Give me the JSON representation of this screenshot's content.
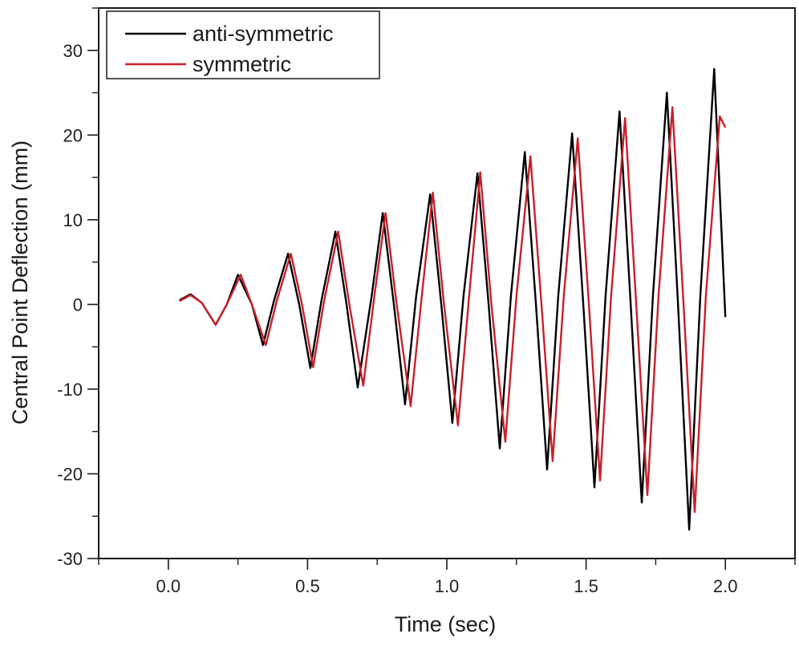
{
  "chart_data": {
    "type": "line",
    "title": "",
    "xlabel": "Time (sec)",
    "ylabel": "Central Point Deflection (mm)",
    "xlim": [
      -0.25,
      2.25
    ],
    "ylim": [
      -30,
      35
    ],
    "x_ticks": [
      0.0,
      0.5,
      1.0,
      1.5,
      2.0
    ],
    "x_tick_labels": [
      "0.0",
      "0.5",
      "1.0",
      "1.5",
      "2.0"
    ],
    "y_ticks": [
      -30,
      -20,
      -10,
      0,
      10,
      20,
      30
    ],
    "y_tick_labels": [
      "-30",
      "-20",
      "-10",
      "0",
      "10",
      "20",
      "30"
    ],
    "grid": false,
    "legend_position": "top-left",
    "series": [
      {
        "name": "anti-symmetric",
        "color": "#000000",
        "points": [
          [
            0.04,
            0.5
          ],
          [
            0.08,
            1.2
          ],
          [
            0.12,
            0.2
          ],
          [
            0.17,
            -2.4
          ],
          [
            0.21,
            0.0
          ],
          [
            0.25,
            3.5
          ],
          [
            0.3,
            0.0
          ],
          [
            0.34,
            -4.8
          ],
          [
            0.38,
            0.5
          ],
          [
            0.43,
            6.0
          ],
          [
            0.47,
            0.0
          ],
          [
            0.51,
            -7.5
          ],
          [
            0.55,
            0.5
          ],
          [
            0.6,
            8.6
          ],
          [
            0.64,
            0.0
          ],
          [
            0.68,
            -9.8
          ],
          [
            0.73,
            1.0
          ],
          [
            0.77,
            10.8
          ],
          [
            0.81,
            0.0
          ],
          [
            0.85,
            -11.8
          ],
          [
            0.89,
            1.0
          ],
          [
            0.94,
            13.0
          ],
          [
            0.98,
            0.0
          ],
          [
            1.02,
            -14.0
          ],
          [
            1.06,
            1.0
          ],
          [
            1.11,
            15.5
          ],
          [
            1.15,
            0.0
          ],
          [
            1.19,
            -17.0
          ],
          [
            1.23,
            1.0
          ],
          [
            1.28,
            18.0
          ],
          [
            1.32,
            0.0
          ],
          [
            1.36,
            -19.5
          ],
          [
            1.4,
            1.0
          ],
          [
            1.45,
            20.2
          ],
          [
            1.49,
            0.0
          ],
          [
            1.53,
            -21.6
          ],
          [
            1.57,
            1.0
          ],
          [
            1.62,
            22.8
          ],
          [
            1.66,
            0.0
          ],
          [
            1.7,
            -23.4
          ],
          [
            1.74,
            1.0
          ],
          [
            1.79,
            25.0
          ],
          [
            1.83,
            0.0
          ],
          [
            1.87,
            -26.6
          ],
          [
            1.91,
            1.0
          ],
          [
            1.96,
            27.8
          ],
          [
            2.0,
            -1.5
          ]
        ]
      },
      {
        "name": "symmetric",
        "color": "#c8202a",
        "points": [
          [
            0.04,
            0.4
          ],
          [
            0.08,
            1.1
          ],
          [
            0.12,
            0.2
          ],
          [
            0.17,
            -2.4
          ],
          [
            0.21,
            0.0
          ],
          [
            0.26,
            3.5
          ],
          [
            0.3,
            0.0
          ],
          [
            0.35,
            -4.8
          ],
          [
            0.39,
            0.5
          ],
          [
            0.44,
            6.0
          ],
          [
            0.48,
            0.0
          ],
          [
            0.52,
            -7.4
          ],
          [
            0.56,
            0.5
          ],
          [
            0.61,
            8.6
          ],
          [
            0.65,
            0.0
          ],
          [
            0.7,
            -9.6
          ],
          [
            0.74,
            1.0
          ],
          [
            0.78,
            10.8
          ],
          [
            0.82,
            0.0
          ],
          [
            0.87,
            -12.0
          ],
          [
            0.91,
            1.0
          ],
          [
            0.95,
            13.2
          ],
          [
            0.99,
            0.0
          ],
          [
            1.04,
            -14.3
          ],
          [
            1.08,
            1.0
          ],
          [
            1.12,
            15.6
          ],
          [
            1.16,
            0.0
          ],
          [
            1.21,
            -16.2
          ],
          [
            1.25,
            1.0
          ],
          [
            1.3,
            17.5
          ],
          [
            1.34,
            0.0
          ],
          [
            1.38,
            -18.5
          ],
          [
            1.42,
            1.0
          ],
          [
            1.47,
            19.6
          ],
          [
            1.51,
            0.0
          ],
          [
            1.55,
            -20.8
          ],
          [
            1.59,
            1.0
          ],
          [
            1.64,
            22.0
          ],
          [
            1.68,
            0.0
          ],
          [
            1.72,
            -22.5
          ],
          [
            1.76,
            1.0
          ],
          [
            1.81,
            23.3
          ],
          [
            1.85,
            0.0
          ],
          [
            1.89,
            -24.5
          ],
          [
            1.93,
            1.0
          ],
          [
            1.98,
            22.2
          ],
          [
            2.0,
            20.9
          ]
        ]
      }
    ]
  }
}
